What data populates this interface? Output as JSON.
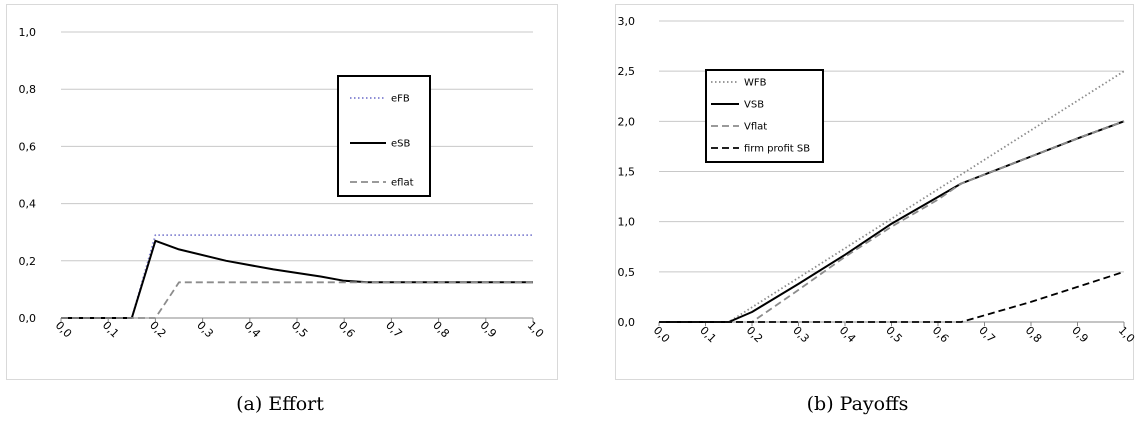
{
  "captions": {
    "a": "(a) Effort",
    "b": "(b) Payoffs"
  },
  "chart_data": [
    {
      "type": "line",
      "title": "",
      "xlabel": "",
      "ylabel": "",
      "x_ticks": [
        "0,0",
        "0,1",
        "0,2",
        "0,3",
        "0,4",
        "0,5",
        "0,6",
        "0,7",
        "0,8",
        "0,9",
        "1,0"
      ],
      "y_ticks": [
        "0,0",
        "0,2",
        "0,4",
        "0,6",
        "0,8",
        "1,0"
      ],
      "xlim": [
        0,
        1
      ],
      "ylim": [
        0,
        1
      ],
      "grid": "horizontal",
      "legend_position": "inside-right",
      "series": [
        {
          "name": "eFB",
          "color": "#7f7fd0",
          "style": "dotted",
          "x": [
            0,
            0.15,
            0.2,
            1.0
          ],
          "y": [
            0,
            0,
            0.29,
            0.29
          ]
        },
        {
          "name": "eSB",
          "color": "#000000",
          "style": "solid",
          "x": [
            0,
            0.15,
            0.2,
            0.25,
            0.35,
            0.45,
            0.55,
            0.6,
            0.65,
            0.75,
            0.85,
            0.95,
            1.0
          ],
          "y": [
            0,
            0,
            0.27,
            0.24,
            0.2,
            0.17,
            0.145,
            0.13,
            0.125,
            0.125,
            0.125,
            0.125,
            0.125
          ]
        },
        {
          "name": "eflat",
          "color": "#8c8c8c",
          "style": "dashed",
          "x": [
            0,
            0.2,
            0.25,
            1.0
          ],
          "y": [
            0,
            0,
            0.125,
            0.125
          ]
        }
      ]
    },
    {
      "type": "line",
      "title": "",
      "xlabel": "",
      "ylabel": "",
      "x_ticks": [
        "0,0",
        "0,1",
        "0,2",
        "0,3",
        "0,4",
        "0,5",
        "0,6",
        "0,7",
        "0,8",
        "0,9",
        "1,0"
      ],
      "y_ticks": [
        "0,0",
        "0,5",
        "1,0",
        "1,5",
        "2,0",
        "2,5",
        "3,0"
      ],
      "xlim": [
        0,
        1
      ],
      "ylim": [
        0,
        3
      ],
      "grid": "horizontal",
      "legend_position": "top-left",
      "series": [
        {
          "name": "WFB",
          "color": "#8c8c8c",
          "style": "dotted",
          "x": [
            0,
            0.15,
            1.0
          ],
          "y": [
            0,
            0,
            2.5
          ]
        },
        {
          "name": "VSB",
          "color": "#000000",
          "style": "solid",
          "x": [
            0,
            0.15,
            0.2,
            0.3,
            0.4,
            0.5,
            0.65,
            0.8,
            0.9,
            1.0
          ],
          "y": [
            0,
            0,
            0.1,
            0.38,
            0.67,
            0.98,
            1.38,
            1.65,
            1.83,
            2.0
          ]
        },
        {
          "name": "Vflat",
          "color": "#8c8c8c",
          "style": "dashed",
          "x": [
            0,
            0.2,
            0.3,
            0.4,
            0.5,
            0.6,
            0.65,
            0.8,
            0.9,
            1.0
          ],
          "y": [
            0,
            0,
            0.32,
            0.65,
            0.95,
            1.22,
            1.38,
            1.65,
            1.83,
            2.0
          ]
        },
        {
          "name": "firm profit SB",
          "color": "#000000",
          "style": "dashed",
          "x": [
            0,
            0.65,
            0.8,
            0.9,
            1.0
          ],
          "y": [
            0,
            0,
            0.2,
            0.35,
            0.5
          ]
        }
      ]
    }
  ]
}
